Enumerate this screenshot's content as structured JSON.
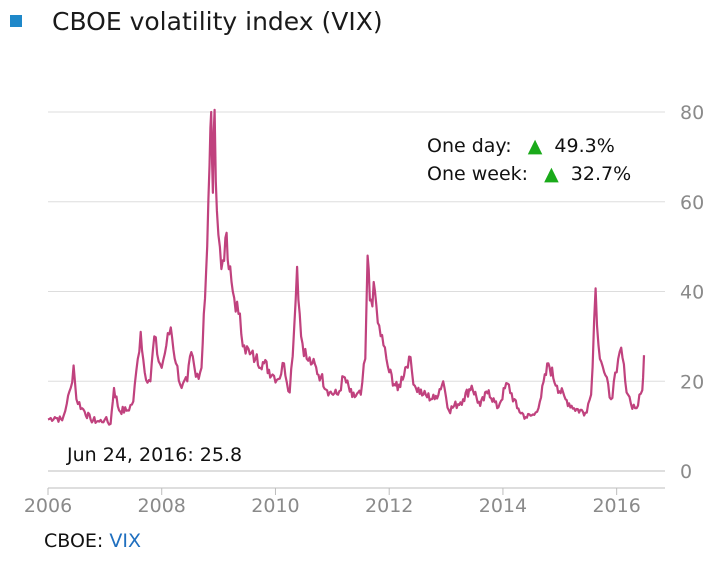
{
  "header": {
    "title": "CBOE volatility index (VIX)",
    "square_color": "#1f88c9"
  },
  "footer": {
    "source_label": "CBOE:",
    "symbol": "VIX",
    "symbol_color": "#1f6fbf"
  },
  "chart_data": {
    "type": "line",
    "title": "CBOE volatility index (VIX)",
    "xlabel": "",
    "ylabel": "",
    "xlim": [
      2006.0,
      2016.85
    ],
    "ylim": [
      0,
      80
    ],
    "x_ticks": [
      2006,
      2008,
      2010,
      2012,
      2014,
      2016
    ],
    "y_ticks": [
      0,
      20,
      40,
      60,
      80
    ],
    "y_axis_side": "right",
    "grid": "horizontal",
    "line_color": "#c0427e",
    "series": [
      {
        "values": [
          [
            2006.0,
            11.5
          ],
          [
            2006.12,
            12.0
          ],
          [
            2006.25,
            11.3
          ],
          [
            2006.33,
            15.0
          ],
          [
            2006.4,
            18.5
          ],
          [
            2006.45,
            23.5
          ],
          [
            2006.5,
            16.0
          ],
          [
            2006.6,
            14.0
          ],
          [
            2006.75,
            11.5
          ],
          [
            2006.9,
            11.0
          ],
          [
            2007.0,
            11.5
          ],
          [
            2007.1,
            10.5
          ],
          [
            2007.16,
            18.5
          ],
          [
            2007.25,
            13.5
          ],
          [
            2007.4,
            13.5
          ],
          [
            2007.5,
            15.5
          ],
          [
            2007.58,
            25.0
          ],
          [
            2007.63,
            31.0
          ],
          [
            2007.7,
            22.0
          ],
          [
            2007.8,
            20.0
          ],
          [
            2007.87,
            30.0
          ],
          [
            2007.92,
            26.0
          ],
          [
            2008.0,
            23.0
          ],
          [
            2008.08,
            28.0
          ],
          [
            2008.16,
            32.0
          ],
          [
            2008.25,
            24.0
          ],
          [
            2008.35,
            18.5
          ],
          [
            2008.45,
            20.0
          ],
          [
            2008.52,
            26.5
          ],
          [
            2008.6,
            21.0
          ],
          [
            2008.7,
            23.0
          ],
          [
            2008.74,
            35.0
          ],
          [
            2008.8,
            50.0
          ],
          [
            2008.84,
            68.0
          ],
          [
            2008.87,
            80.0
          ],
          [
            2008.9,
            62.0
          ],
          [
            2008.93,
            80.5
          ],
          [
            2008.97,
            58.0
          ],
          [
            2009.05,
            45.0
          ],
          [
            2009.12,
            52.0
          ],
          [
            2009.18,
            45.0
          ],
          [
            2009.25,
            40.0
          ],
          [
            2009.35,
            35.0
          ],
          [
            2009.45,
            28.0
          ],
          [
            2009.55,
            26.0
          ],
          [
            2009.65,
            25.0
          ],
          [
            2009.8,
            24.0
          ],
          [
            2009.95,
            21.5
          ],
          [
            2010.05,
            20.5
          ],
          [
            2010.15,
            24.0
          ],
          [
            2010.25,
            17.5
          ],
          [
            2010.33,
            32.0
          ],
          [
            2010.38,
            45.5
          ],
          [
            2010.45,
            30.0
          ],
          [
            2010.55,
            25.0
          ],
          [
            2010.65,
            24.0
          ],
          [
            2010.8,
            21.0
          ],
          [
            2010.95,
            17.5
          ],
          [
            2011.1,
            17.0
          ],
          [
            2011.2,
            21.0
          ],
          [
            2011.35,
            16.5
          ],
          [
            2011.5,
            17.0
          ],
          [
            2011.58,
            25.0
          ],
          [
            2011.62,
            48.0
          ],
          [
            2011.66,
            38.0
          ],
          [
            2011.75,
            40.0
          ],
          [
            2011.8,
            33.0
          ],
          [
            2011.9,
            28.0
          ],
          [
            2012.0,
            22.0
          ],
          [
            2012.15,
            18.0
          ],
          [
            2012.35,
            25.5
          ],
          [
            2012.45,
            19.0
          ],
          [
            2012.6,
            17.0
          ],
          [
            2012.8,
            16.0
          ],
          [
            2012.95,
            20.0
          ],
          [
            2013.05,
            13.5
          ],
          [
            2013.3,
            16.0
          ],
          [
            2013.45,
            19.0
          ],
          [
            2013.6,
            14.5
          ],
          [
            2013.75,
            18.0
          ],
          [
            2013.9,
            14.0
          ],
          [
            2014.08,
            19.5
          ],
          [
            2014.25,
            14.0
          ],
          [
            2014.4,
            12.0
          ],
          [
            2014.55,
            12.5
          ],
          [
            2014.65,
            15.5
          ],
          [
            2014.8,
            24.0
          ],
          [
            2014.95,
            19.0
          ],
          [
            2015.1,
            16.0
          ],
          [
            2015.25,
            14.0
          ],
          [
            2015.45,
            13.0
          ],
          [
            2015.55,
            17.0
          ],
          [
            2015.63,
            40.7
          ],
          [
            2015.68,
            28.0
          ],
          [
            2015.78,
            22.0
          ],
          [
            2015.9,
            16.0
          ],
          [
            2016.0,
            22.0
          ],
          [
            2016.08,
            27.5
          ],
          [
            2016.15,
            20.0
          ],
          [
            2016.25,
            15.0
          ],
          [
            2016.35,
            14.0
          ],
          [
            2016.45,
            18.0
          ],
          [
            2016.48,
            25.8
          ]
        ]
      }
    ],
    "annotations": {
      "one_day_label": "One day:",
      "one_day_arrow": "▲",
      "one_day_value": "49.3%",
      "one_week_label": "One week:",
      "one_week_arrow": "▲",
      "one_week_value": "32.7%",
      "arrow_color": "#1aaa1a",
      "last_value_text": "Jun 24, 2016: 25.8"
    }
  }
}
